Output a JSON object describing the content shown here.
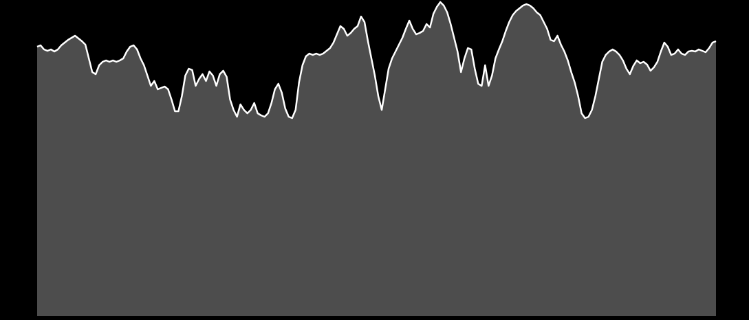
{
  "chart_data": {
    "type": "area",
    "fill_color": "#4d4d4d",
    "line_color": "#ffffff",
    "background": "#000000",
    "ylim": [
      0,
      460
    ],
    "values": [
      392,
      394,
      388,
      386,
      388,
      385,
      388,
      394,
      398,
      402,
      405,
      408,
      404,
      400,
      395,
      375,
      355,
      352,
      365,
      370,
      372,
      370,
      372,
      370,
      372,
      375,
      385,
      392,
      394,
      388,
      375,
      365,
      350,
      335,
      342,
      330,
      332,
      334,
      330,
      315,
      298,
      298,
      320,
      350,
      360,
      358,
      335,
      345,
      352,
      342,
      356,
      350,
      335,
      352,
      357,
      348,
      315,
      300,
      290,
      308,
      300,
      295,
      300,
      310,
      295,
      292,
      290,
      295,
      310,
      330,
      338,
      325,
      302,
      290,
      288,
      300,
      340,
      365,
      378,
      382,
      380,
      382,
      380,
      382,
      386,
      390,
      398,
      410,
      422,
      418,
      408,
      412,
      418,
      422,
      436,
      428,
      400,
      375,
      350,
      320,
      300,
      330,
      360,
      375,
      385,
      395,
      405,
      418,
      430,
      418,
      410,
      412,
      415,
      425,
      420,
      440,
      450,
      457,
      452,
      442,
      425,
      405,
      385,
      355,
      375,
      390,
      388,
      360,
      338,
      335,
      365,
      335,
      350,
      375,
      388,
      400,
      415,
      428,
      438,
      444,
      448,
      452,
      454,
      452,
      448,
      442,
      438,
      428,
      418,
      402,
      400,
      408,
      395,
      385,
      372,
      355,
      340,
      320,
      295,
      288,
      290,
      300,
      320,
      345,
      370,
      380,
      385,
      388,
      385,
      380,
      372,
      360,
      352,
      364,
      372,
      368,
      370,
      366,
      357,
      362,
      370,
      385,
      398,
      392,
      380,
      382,
      388,
      382,
      380,
      385,
      386,
      385,
      388,
      386,
      384,
      390,
      398,
      400
    ]
  }
}
